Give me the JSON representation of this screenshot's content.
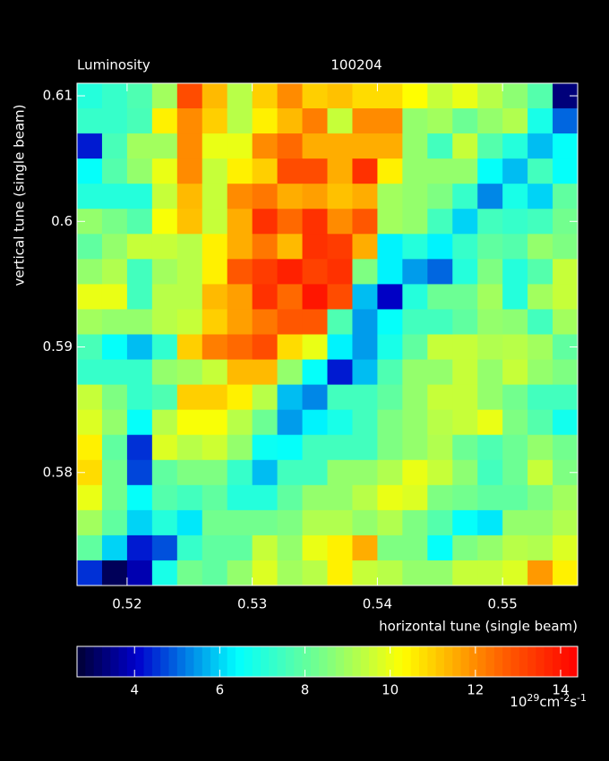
{
  "chart_data": {
    "type": "heatmap",
    "title": "Luminosity",
    "subtitle": "100204",
    "x_label": "horizontal tune (single beam)",
    "y_label": "vertical tune (single beam)",
    "xlim": [
      0.516,
      0.556
    ],
    "ylim": [
      0.571,
      0.611
    ],
    "xticks": [
      0.52,
      0.53,
      0.54,
      0.55
    ],
    "yticks": [
      0.58,
      0.59,
      0.6,
      0.61
    ],
    "clim": [
      2.65,
      14.4
    ],
    "cticks": [
      4,
      6,
      8,
      10,
      12,
      14
    ],
    "colorbar_label": [
      "10",
      "29",
      "cm",
      "-2",
      "s",
      "-1"
    ],
    "colorscale": [
      [
        0,
        "#000033"
      ],
      [
        0.12,
        "#0000cc"
      ],
      [
        0.32,
        "#00ffff"
      ],
      [
        0.5,
        "#80ff80"
      ],
      [
        0.65,
        "#ffff00"
      ],
      [
        0.85,
        "#ff6000"
      ],
      [
        1,
        "#ff0000"
      ]
    ],
    "z": [
      [
        7,
        7.3,
        7.7,
        9,
        13,
        11.3,
        9.3,
        11,
        12,
        11,
        11.2,
        10.8,
        10.8,
        10.3,
        9.5,
        10,
        9.3,
        8.7,
        7.8,
        3.3
      ],
      [
        7.3,
        7.3,
        7.6,
        10.5,
        12,
        11,
        9.3,
        10.5,
        11.3,
        12.2,
        9.5,
        12,
        12,
        8.8,
        9,
        8.2,
        8.8,
        9.2,
        6.8,
        5
      ],
      [
        4.3,
        7.6,
        9,
        9,
        12,
        10,
        10,
        12,
        12.5,
        11.5,
        11.5,
        11.5,
        11.5,
        8.8,
        7.5,
        9.5,
        7.8,
        7,
        5.8,
        6.5
      ],
      [
        6.5,
        7.8,
        8.8,
        10,
        12,
        9.5,
        10.5,
        11,
        13,
        13,
        11.5,
        13.5,
        10.5,
        8.8,
        8.8,
        8.8,
        6.5,
        5.8,
        7.5,
        6.5
      ],
      [
        7,
        7,
        7,
        9.5,
        11.3,
        9.5,
        12,
        12.3,
        11.5,
        11.7,
        11.2,
        11.5,
        9,
        8.8,
        8.5,
        7.3,
        5.3,
        6.8,
        6,
        8
      ],
      [
        8.8,
        8.4,
        7.8,
        10.2,
        11.2,
        9.5,
        11.5,
        13.5,
        12.5,
        13.5,
        12,
        12.8,
        9,
        8.8,
        7.5,
        6,
        7.5,
        7.3,
        7.5,
        8.3
      ],
      [
        8,
        8.8,
        9.5,
        9.5,
        9.3,
        10.5,
        11.5,
        12.3,
        11.3,
        13.5,
        13.3,
        11.5,
        6.3,
        7,
        6.3,
        7.3,
        8,
        7.8,
        8.8,
        8.5
      ],
      [
        8.8,
        9.2,
        7.5,
        9,
        9.3,
        10.5,
        12.8,
        13.3,
        13.8,
        13.2,
        13.5,
        8.5,
        6.3,
        5.5,
        5,
        7,
        8.5,
        7,
        7.8,
        9.5
      ],
      [
        10,
        10,
        7.5,
        9.3,
        9.3,
        11.3,
        11.7,
        13.5,
        12.5,
        14,
        13,
        5.8,
        4,
        7,
        8.2,
        8.2,
        9,
        7,
        9,
        9.5
      ],
      [
        9,
        8.8,
        8.8,
        9.3,
        9.5,
        11,
        11.7,
        12.3,
        12.8,
        12.8,
        7.7,
        5.5,
        6.5,
        7.5,
        7.5,
        8,
        8.8,
        8.7,
        7.5,
        9
      ],
      [
        7.6,
        6.5,
        5.8,
        7.2,
        11,
        12.2,
        12.5,
        13,
        10.8,
        10,
        6.3,
        5.5,
        6.8,
        8,
        9.5,
        9.5,
        9.2,
        9.3,
        9,
        8
      ],
      [
        7.3,
        7.3,
        7.3,
        8.8,
        9,
        9.5,
        11.3,
        11.3,
        8.8,
        6.5,
        4.3,
        5.8,
        7.7,
        8.8,
        8.8,
        9.5,
        8.8,
        9.5,
        8.8,
        8.5
      ],
      [
        9.5,
        8.5,
        7.3,
        7.7,
        11,
        11,
        10.5,
        9.3,
        5.8,
        5.3,
        7.5,
        7.5,
        8,
        8.8,
        9.5,
        9.5,
        8.8,
        8.3,
        7.5,
        7.5
      ],
      [
        9.8,
        8.8,
        6.5,
        9.3,
        10.2,
        10.2,
        9.3,
        8.2,
        5.5,
        6.3,
        6.8,
        7.5,
        8.5,
        8.8,
        9.3,
        9.5,
        10,
        8.5,
        7.8,
        6.7
      ],
      [
        10.5,
        8,
        4.5,
        9.8,
        9.3,
        9.6,
        8.8,
        6.6,
        6.5,
        7.5,
        7.5,
        7.5,
        8.5,
        8.8,
        9.2,
        8.2,
        7.7,
        8.2,
        8.8,
        8.3
      ],
      [
        10.8,
        8.3,
        4.7,
        8,
        8.5,
        8.5,
        7.3,
        5.8,
        7.5,
        7.5,
        8.8,
        8.8,
        9.2,
        10,
        9.5,
        8.7,
        7.5,
        8.2,
        9.5,
        8.5
      ],
      [
        10,
        8.3,
        6.5,
        7.8,
        7.5,
        8,
        7,
        7,
        8,
        8.8,
        8.8,
        9.3,
        10,
        9.8,
        8.5,
        8.3,
        8,
        8,
        8.5,
        9
      ],
      [
        9,
        8,
        6,
        7,
        6.2,
        8.3,
        8.3,
        8.3,
        8.5,
        9.2,
        9.2,
        8.8,
        9.2,
        8.5,
        7.8,
        6.5,
        6.2,
        8.8,
        8.8,
        9.2
      ],
      [
        8,
        6,
        4.3,
        4.8,
        7.3,
        8,
        8,
        9.5,
        8.8,
        10,
        10.5,
        11.5,
        8.5,
        8.5,
        6.5,
        8.5,
        8.8,
        9.3,
        9.2,
        9.8
      ],
      [
        4.5,
        3,
        3.8,
        6.8,
        8.3,
        8,
        8.8,
        9.8,
        9,
        9.3,
        10.5,
        9.5,
        9.3,
        8.8,
        8.8,
        9.5,
        9.5,
        9.8,
        11.8,
        10.5
      ]
    ]
  }
}
